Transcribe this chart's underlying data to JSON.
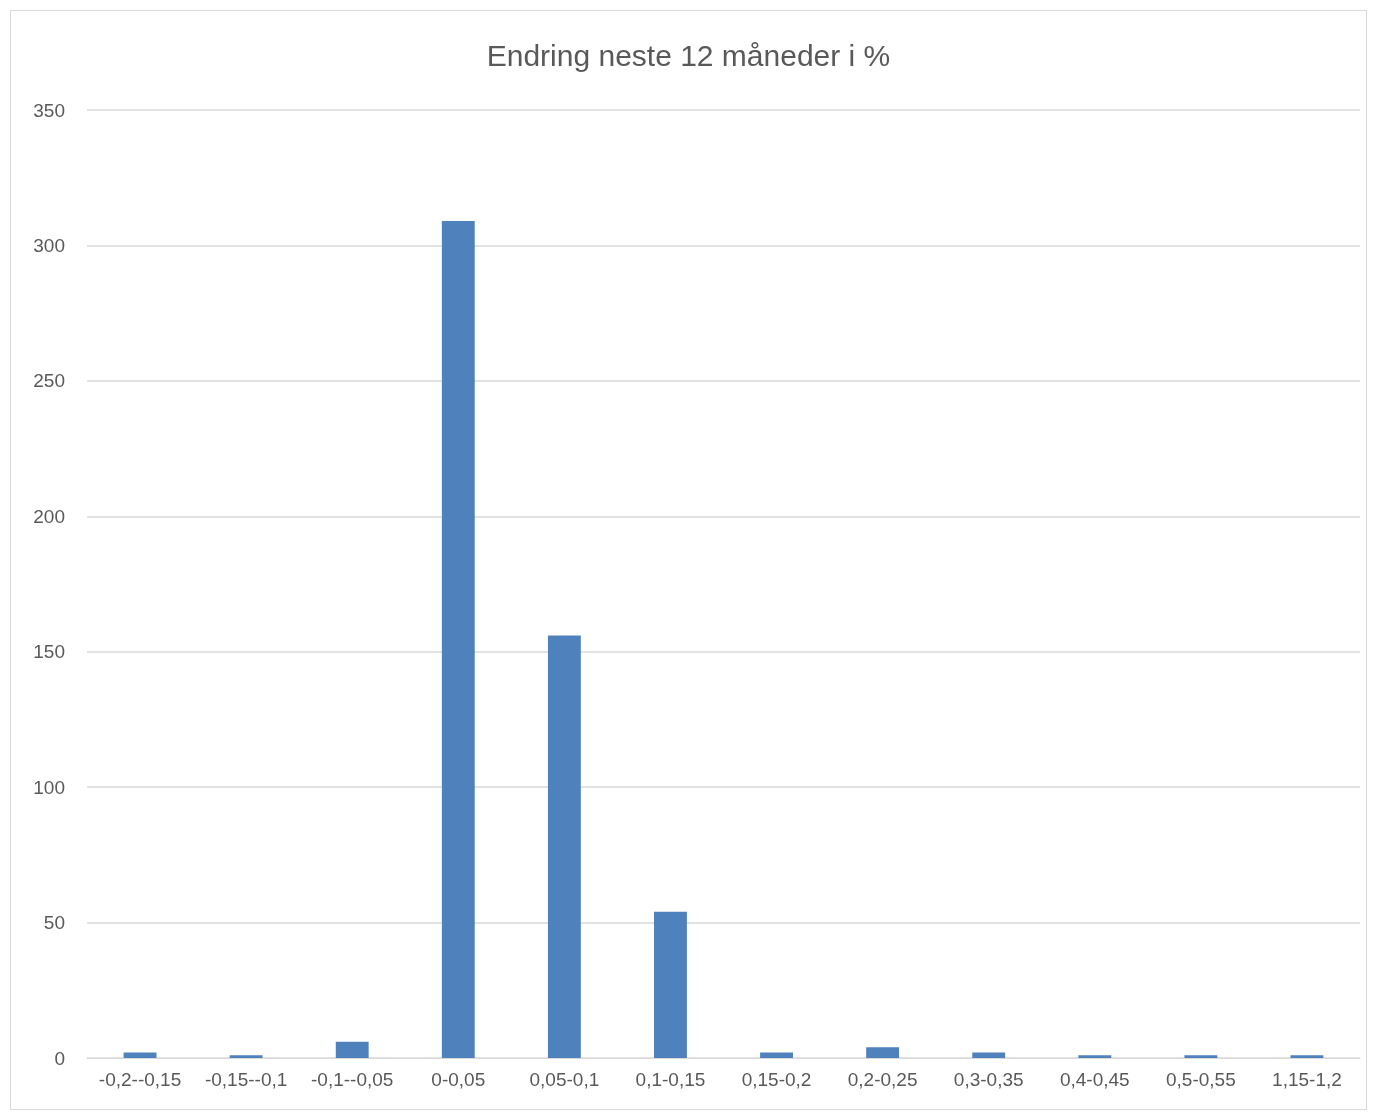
{
  "chart_data": {
    "type": "bar",
    "title": "Endring neste 12 måneder i %",
    "categories": [
      "-0,2--0,15",
      "-0,15--0,1",
      "-0,1--0,05",
      "0-0,05",
      "0,05-0,1",
      "0,1-0,15",
      "0,15-0,2",
      "0,2-0,25",
      "0,3-0,35",
      "0,4-0,45",
      "0,5-0,55",
      "1,15-1,2"
    ],
    "values": [
      2,
      1,
      6,
      309,
      156,
      54,
      2,
      4,
      2,
      1,
      1,
      1
    ],
    "color": "#4f81bd",
    "ylim": [
      0,
      350
    ],
    "yticks": [
      0,
      50,
      100,
      150,
      200,
      250,
      300,
      350
    ],
    "grid": "y"
  }
}
